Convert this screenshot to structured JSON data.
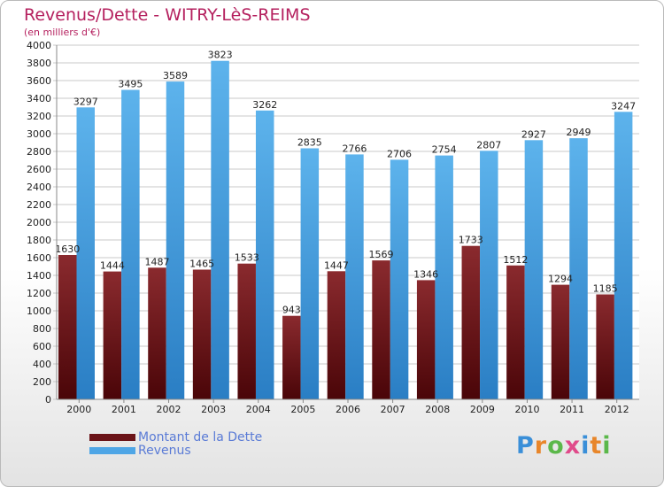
{
  "title": "Revenus/Dette - WITRY-LèS-REIMS",
  "subtitle": "(en milliers d'€)",
  "logo": {
    "letters": [
      "P",
      "r",
      "o",
      "x",
      "i",
      "t",
      "i"
    ],
    "colors": [
      "#3a8fd8",
      "#e8862a",
      "#5bb84a",
      "#e04a8a",
      "#3a8fd8",
      "#e8862a",
      "#5bb84a"
    ]
  },
  "chart_data": {
    "type": "bar",
    "categories": [
      "2000",
      "2001",
      "2002",
      "2003",
      "2004",
      "2005",
      "2006",
      "2007",
      "2008",
      "2009",
      "2010",
      "2011",
      "2012"
    ],
    "series": [
      {
        "name": "Montant de la Dette",
        "color": "#6b1418",
        "values": [
          1630,
          1444,
          1487,
          1465,
          1533,
          943,
          1447,
          1569,
          1346,
          1733,
          1512,
          1294,
          1185
        ],
        "labels": [
          "1630",
          "1444",
          "1487",
          "1465",
          "1533",
          "943",
          "1447",
          "1569",
          "1346",
          "1733",
          "1512",
          "1294",
          "1185"
        ]
      },
      {
        "name": "Revenus",
        "color": "#4fa6e6",
        "values": [
          3297,
          3495,
          3589,
          3823,
          3262,
          2835,
          2766,
          2706,
          2754,
          2807,
          2927,
          2949,
          3247
        ],
        "labels": [
          "3297",
          "3495",
          "3589",
          "3823",
          "3262",
          "2835",
          "2766",
          "2706",
          "2754",
          "2807",
          "2927",
          "2949",
          "3247"
        ]
      }
    ],
    "yticks": [
      "0",
      "200",
      "400",
      "600",
      "800",
      "1000",
      "1200",
      "1400",
      "1600",
      "1800",
      "2000",
      "2200",
      "2400",
      "2600",
      "2800",
      "3000",
      "3200",
      "3400",
      "3600",
      "3800",
      "4000"
    ],
    "ylim": [
      0,
      4000
    ],
    "grid": true,
    "legend": "bottom-left"
  }
}
